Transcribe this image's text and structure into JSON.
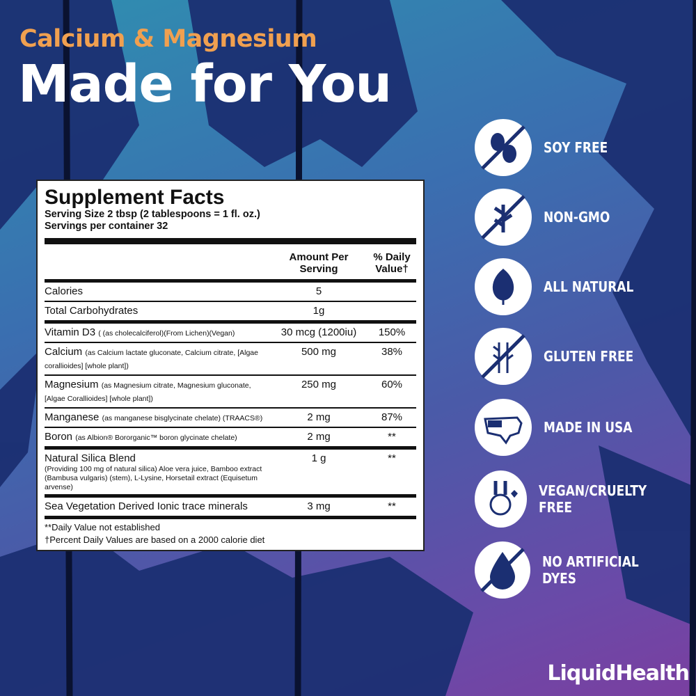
{
  "header": {
    "subtitle": "Calcium & Magnesium",
    "title": "Made for You"
  },
  "facts": {
    "title": "Supplement Facts",
    "serving_size": "Serving Size 2 tbsp (2 tablespoons = 1 fl. oz.)",
    "servings": "Servings per container 32",
    "col_amount": "Amount Per Serving",
    "col_dv": "% Daily Value†",
    "rows": [
      {
        "name": "Calories",
        "detail": "",
        "amount": "5",
        "dv": ""
      },
      {
        "name": "Total Carbohydrates",
        "detail": "",
        "amount": "1g",
        "dv": ""
      },
      {
        "name": "Vitamin D3",
        "detail": "( (as cholecalciferol)(From Lichen)(Vegan)",
        "amount": "30 mcg (1200iu)",
        "dv": "150%"
      },
      {
        "name": "Calcium",
        "detail": "(as Calcium lactate gluconate, Calcium citrate, [Algae corallioides] [whole plant])",
        "amount": "500 mg",
        "dv": "38%"
      },
      {
        "name": "Magnesium",
        "detail": "(as Magnesium citrate, Magnesium gluconate, [Algae Corallioides] [whole plant])",
        "amount": "250 mg",
        "dv": "60%"
      },
      {
        "name": "Manganese",
        "detail": "(as manganese bisglycinate chelate) (TRAACS®)",
        "amount": "2 mg",
        "dv": "87%"
      },
      {
        "name": "Boron",
        "detail": "(as Albion® Bororganic™ boron glycinate chelate)",
        "amount": "2 mg",
        "dv": "**"
      },
      {
        "name": "Natural Silica Blend",
        "detail": "(Providing 100 mg of natural silica) Aloe vera juice, Bamboo extract (Bambusa vulgaris) (stem), L-Lysine, Horsetail extract (Equisetum arvense)",
        "amount": "1 g",
        "dv": "**"
      },
      {
        "name": "Sea Vegetation Derived Ionic trace minerals",
        "detail": "",
        "amount": "3 mg",
        "dv": "**"
      }
    ],
    "foot1": "**Daily Value not established",
    "foot2": "†Percent Daily Values are based on a 2000 calorie diet"
  },
  "badges": [
    {
      "label": "SOY FREE",
      "icon": "soy-free-icon"
    },
    {
      "label": "NON-GMO",
      "icon": "non-gmo-icon"
    },
    {
      "label": "ALL NATURAL",
      "icon": "leaf-icon"
    },
    {
      "label": "GLUTEN FREE",
      "icon": "gluten-free-icon"
    },
    {
      "label": "MADE IN USA",
      "icon": "usa-map-icon"
    },
    {
      "label": "VEGAN/CRUELTY FREE",
      "icon": "bunny-icon"
    },
    {
      "label": "NO ARTIFICIAL DYES",
      "icon": "no-dye-drop-icon"
    }
  ],
  "brand": {
    "logo": "LiquidHealth",
    "color_accent": "#f0a050",
    "color_navy": "#1a2c6a"
  }
}
